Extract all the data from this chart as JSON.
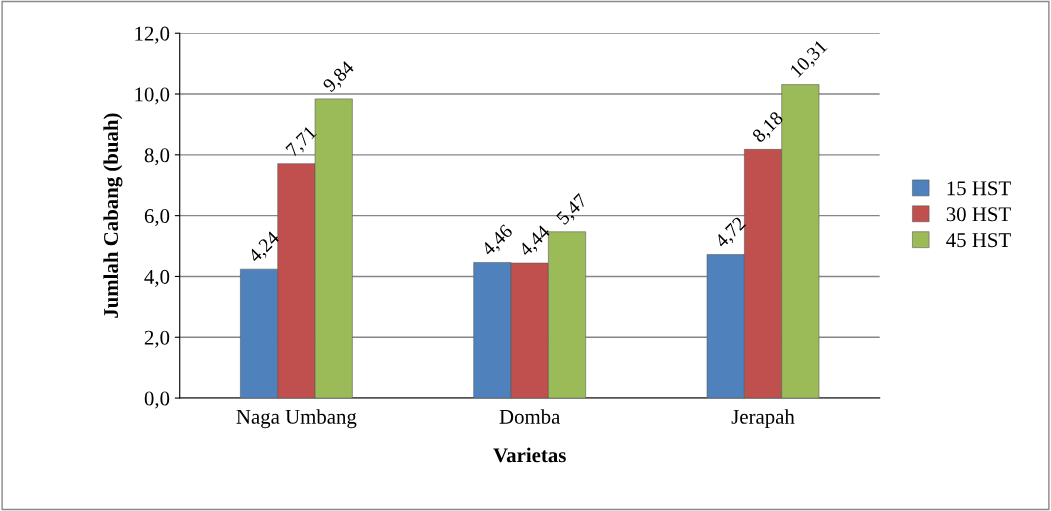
{
  "chart_data": {
    "type": "bar",
    "xlabel": "Varietas",
    "ylabel": "Jumlah Cabang (buah)",
    "categories": [
      "Naga Umbang",
      "Domba",
      "Jerapah"
    ],
    "series": [
      {
        "name": "15 HST",
        "color": "#4f81bd",
        "values": [
          4.24,
          4.46,
          4.72
        ],
        "value_labels": [
          "4,24",
          "4,46",
          "4,72"
        ]
      },
      {
        "name": "30 HST",
        "color": "#c0504d",
        "values": [
          7.71,
          4.44,
          8.18
        ],
        "value_labels": [
          "7,71",
          "4,44",
          "8,18"
        ]
      },
      {
        "name": "45 HST",
        "color": "#9bbb59",
        "values": [
          9.84,
          5.47,
          10.31
        ],
        "value_labels": [
          "9,84",
          "5,47",
          "10,31"
        ]
      }
    ],
    "ylim": [
      0,
      12
    ],
    "yticks": [
      {
        "value": 0,
        "label": "0,0"
      },
      {
        "value": 2,
        "label": "2,0"
      },
      {
        "value": 4,
        "label": "4,0"
      },
      {
        "value": 6,
        "label": "6,0"
      },
      {
        "value": 8,
        "label": "8,0"
      },
      {
        "value": 10,
        "label": "10,0"
      },
      {
        "value": 12,
        "label": "12,0"
      }
    ],
    "grid": "y",
    "legend": "right"
  }
}
